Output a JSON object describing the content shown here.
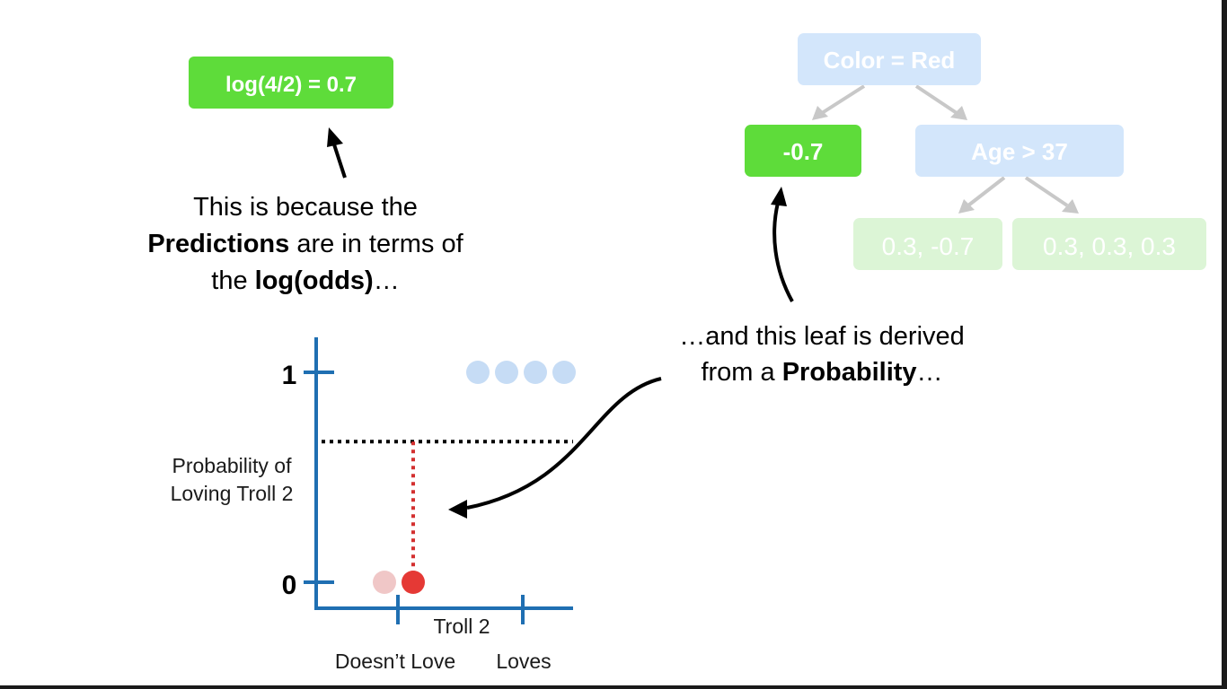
{
  "formula_box": {
    "text": "log(4/2) = 0.7",
    "color": "#5edc3a"
  },
  "explanation": {
    "line1": "This is because the",
    "line2_bold": "Predictions",
    "line2_rest": " are in terms of",
    "line3_pre": "the ",
    "line3_bold": "log(odds)",
    "line3_post": "…"
  },
  "leaf_note": {
    "line1": "…and this leaf is derived",
    "line2_pre": "from a ",
    "line2_bold": "Probability",
    "line2_post": "…"
  },
  "tree": {
    "root": "Color = Red",
    "left_leaf": "-0.7",
    "right_node": "Age > 37",
    "leaf_a": "0.3, -0.7",
    "leaf_b": "0.3, 0.3, 0.3",
    "node_color": "#d3e6fb",
    "leaf_color": "#dcf5d6",
    "highlight_color": "#5edc3a"
  },
  "chart_data": {
    "type": "scatter",
    "ylabel_line1": "Probability of",
    "ylabel_line2": "Loving Troll 2",
    "xlabel": "Troll 2",
    "y_ticks": [
      "0",
      "1"
    ],
    "x_categories": [
      "Doesn’t Love",
      "Loves"
    ],
    "ylim": [
      0,
      1
    ],
    "threshold_probability": 0.67,
    "series": [
      {
        "category": "Loves",
        "count": 4,
        "y": 1,
        "color": "#c6dcf5"
      },
      {
        "category": "Doesn’t Love",
        "count": 2,
        "y": 0,
        "color": "#f0c7c7",
        "highlight_color": "#e53935"
      }
    ]
  }
}
